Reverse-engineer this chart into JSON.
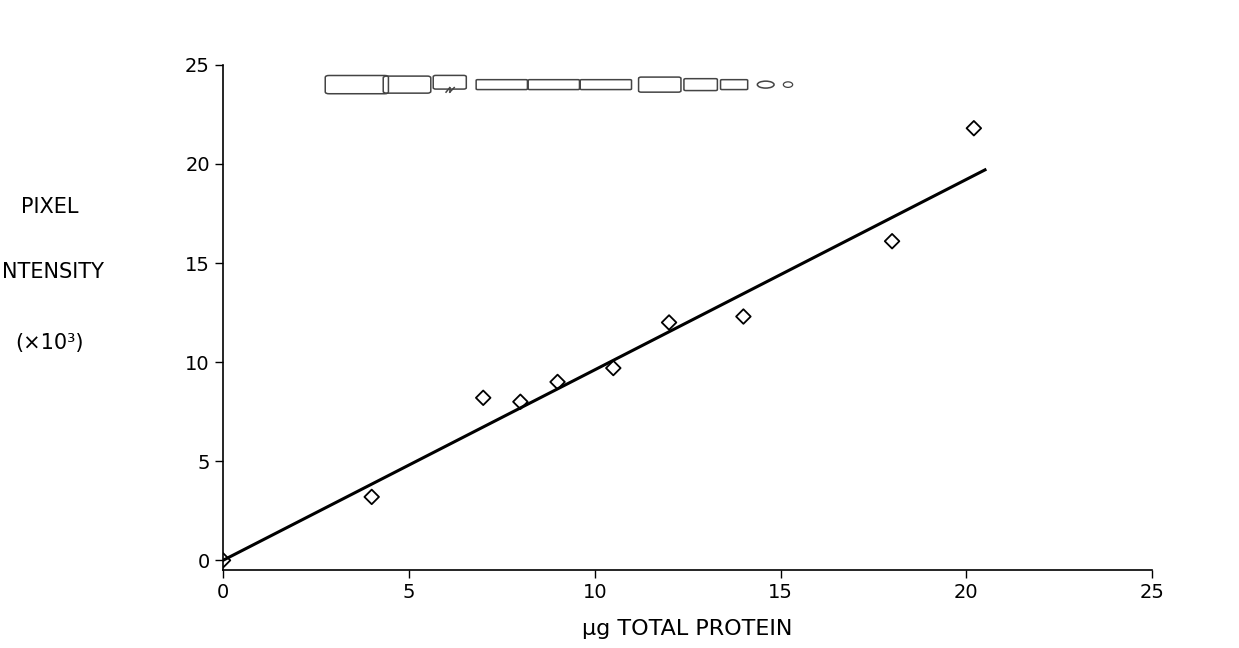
{
  "scatter_x": [
    0,
    4.0,
    7.0,
    8.0,
    9.0,
    10.5,
    12.0,
    14.0,
    18.0,
    20.2
  ],
  "scatter_y": [
    0,
    3.2,
    8.2,
    8.0,
    9.0,
    9.7,
    12.0,
    12.3,
    16.1,
    21.8
  ],
  "line_x": [
    0,
    20.5
  ],
  "line_y": [
    0,
    19.7
  ],
  "xlabel": "μg TOTAL PROTEIN",
  "ylabel_line1": "PIXEL",
  "ylabel_line2": "INTENSITY",
  "ylabel_line3": "(×10³)",
  "xlim": [
    0,
    25
  ],
  "ylim": [
    -0.5,
    25
  ],
  "xticks": [
    0,
    5,
    10,
    15,
    20,
    25
  ],
  "yticks": [
    0,
    5,
    10,
    15,
    20,
    25
  ],
  "background_color": "#ffffff",
  "line_color": "#000000",
  "scatter_color": "#000000",
  "marker_size": 55,
  "xlabel_fontsize": 16,
  "ylabel_fontsize": 15,
  "tick_fontsize": 14,
  "line_width": 2.2
}
